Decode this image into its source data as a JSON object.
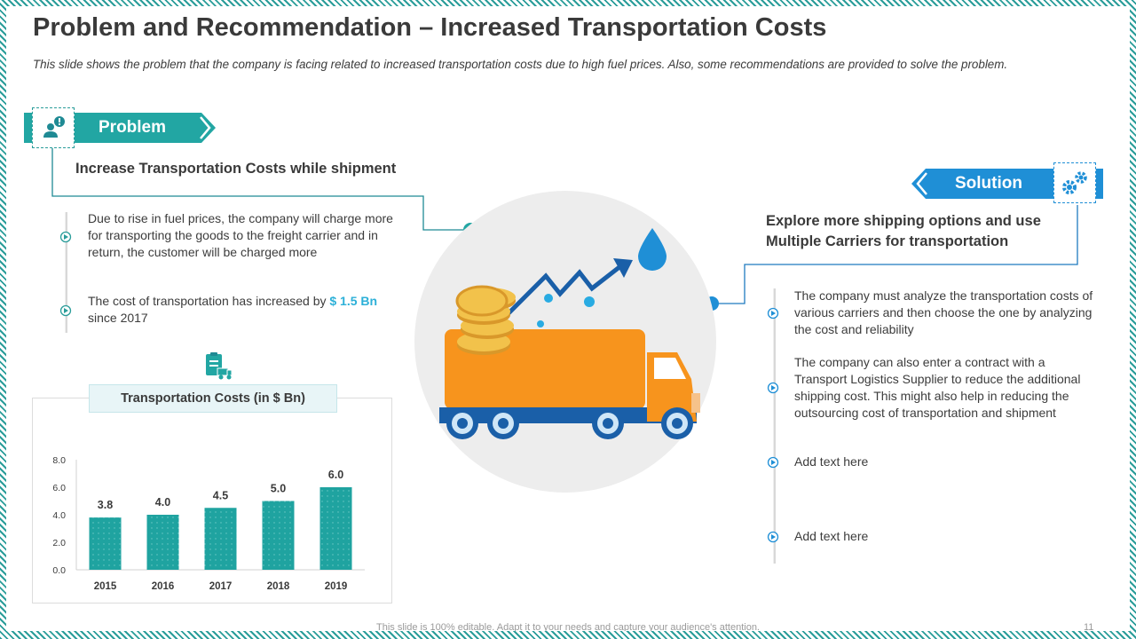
{
  "header": {
    "title": "Problem and Recommendation – Increased Transportation Costs",
    "subtitle": "This slide shows the problem that the company is facing related to increased transportation  costs due to high fuel prices. Also, some recommendations are provided to solve the problem."
  },
  "problem": {
    "label": "Problem",
    "heading": "Increase Transportation Costs while shipment",
    "points": [
      "Due to rise in fuel prices, the company will charge more for transporting the goods to the freight carrier and in return, the customer will be charged more",
      "The cost of transportation  has increased by",
      "$ 1.5 Bn",
      "since 2017"
    ]
  },
  "solution": {
    "label": "Solution",
    "heading": "Explore more shipping options and use Multiple Carriers for transportation",
    "points": [
      "The company must analyze the transportation costs of various carriers and then choose the one by analyzing the cost and reliability",
      "The company can also enter a contract with a Transport Logistics Supplier to reduce the additional shipping cost. This might also help in reducing the outsourcing  cost of transportation and shipment",
      "Add text here",
      "Add text here"
    ]
  },
  "chart_data": {
    "type": "bar",
    "title": "Transportation Costs (in $ Bn)",
    "categories": [
      "2015",
      "2016",
      "2017",
      "2018",
      "2019"
    ],
    "values": [
      3.8,
      4.0,
      4.5,
      5.0,
      6.0
    ],
    "value_labels": [
      "3.8",
      "4.0",
      "4.5",
      "5.0",
      "6.0"
    ],
    "y_ticks": [
      "0.0",
      "2.0",
      "4.0",
      "6.0",
      "8.0"
    ],
    "ylim": [
      0,
      8
    ],
    "xlabel": "",
    "ylabel": "",
    "grid": false,
    "legend": "none",
    "bar_color": "#1fa3a0"
  },
  "footer": {
    "note": "This slide is 100% editable. Adapt it to your needs and capture your audience's attention.",
    "page": "11"
  },
  "colors": {
    "accent": "#22a6a3",
    "solution_blue": "#1f8fd6",
    "truck_orange": "#f7941d"
  }
}
